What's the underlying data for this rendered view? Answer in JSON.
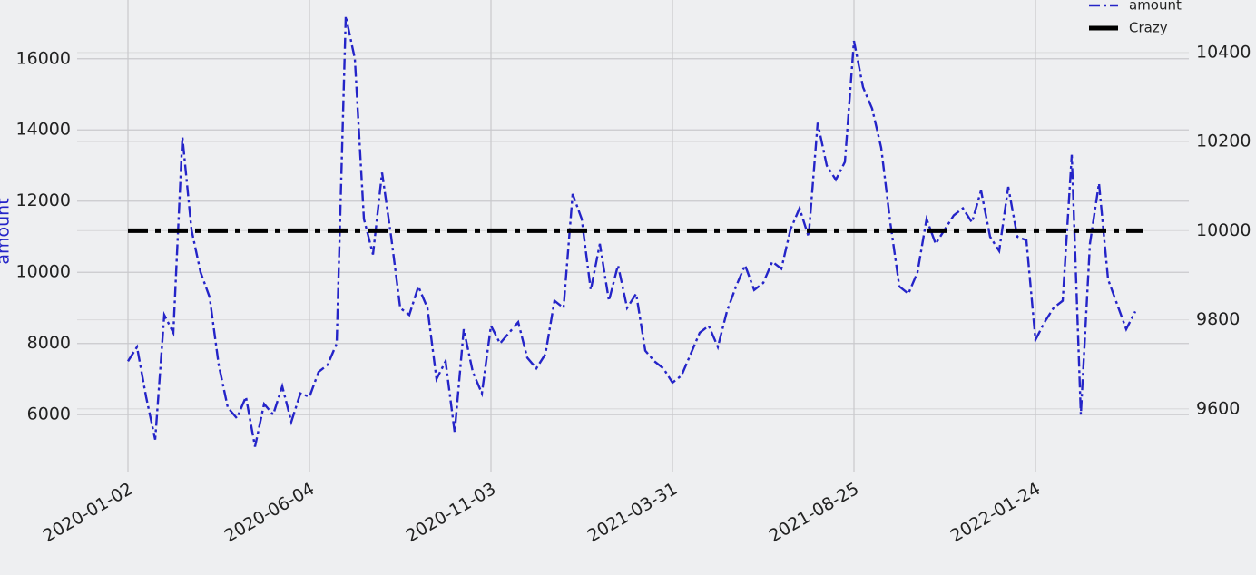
{
  "chart_data": {
    "type": "line",
    "y_label": "amount",
    "categories": [
      "2020-01-02",
      null,
      null,
      null,
      null,
      null,
      null,
      null,
      null,
      null,
      null,
      null,
      null,
      null,
      null,
      null,
      null,
      null,
      null,
      null,
      "2020-06-04",
      null,
      null,
      null,
      null,
      null,
      null,
      null,
      null,
      null,
      null,
      null,
      null,
      null,
      null,
      null,
      null,
      null,
      null,
      null,
      "2020-11-03",
      null,
      null,
      null,
      null,
      null,
      null,
      null,
      null,
      null,
      null,
      null,
      null,
      null,
      null,
      null,
      null,
      null,
      null,
      null,
      "2021-03-31",
      null,
      null,
      null,
      null,
      null,
      null,
      null,
      null,
      null,
      null,
      null,
      null,
      null,
      null,
      null,
      null,
      null,
      null,
      null,
      "2021-08-25",
      null,
      null,
      null,
      null,
      null,
      null,
      null,
      null,
      null,
      null,
      null,
      null,
      null,
      null,
      null,
      null,
      null,
      null,
      null,
      "2022-01-24",
      null,
      null,
      null,
      null,
      null,
      null,
      null,
      null,
      null,
      null,
      null
    ],
    "series": [
      {
        "name": "amount",
        "color": "#2424c8",
        "values": [
          7500,
          7900,
          6500,
          5300,
          8800,
          8300,
          13800,
          11200,
          10000,
          9300,
          7400,
          6200,
          5900,
          6500,
          5100,
          6300,
          6000,
          6800,
          5800,
          6600,
          6500,
          7200,
          7400,
          8000,
          17200,
          16000,
          11500,
          10500,
          12800,
          11000,
          9000,
          8800,
          9600,
          9000,
          7000,
          7500,
          5500,
          8400,
          7200,
          6600,
          8500,
          8000,
          8300,
          8600,
          7600,
          7300,
          7700,
          9200,
          9000,
          12200,
          11500,
          9500,
          10800,
          9200,
          10200,
          9000,
          9400,
          7800,
          7500,
          7300,
          6900,
          7100,
          7700,
          8300,
          8500,
          7900,
          8900,
          9600,
          10200,
          9500,
          9700,
          10300,
          10100,
          11200,
          11800,
          11000,
          14200,
          13000,
          12600,
          13100,
          16500,
          15200,
          14600,
          13500,
          11400,
          9600,
          9400,
          10000,
          11500,
          10800,
          11200,
          11600,
          11800,
          11400,
          12300,
          11000,
          10600,
          12400,
          11000,
          10900,
          8100,
          8600,
          9000,
          9200,
          13300,
          6000,
          10800,
          12500,
          9800,
          9100,
          8400,
          8900
        ]
      }
    ],
    "hlines": [
      {
        "name": "Crazy",
        "value": 10000,
        "axis": "y2",
        "color": "#000000"
      }
    ],
    "ylim": [
      4400,
      17650
    ],
    "yticks": [
      6000,
      8000,
      10000,
      12000,
      14000,
      16000
    ],
    "y2lim": [
      9459,
      10518
    ],
    "y2ticks": [
      9600,
      9800,
      10000,
      10200,
      10400
    ],
    "grid": true
  }
}
